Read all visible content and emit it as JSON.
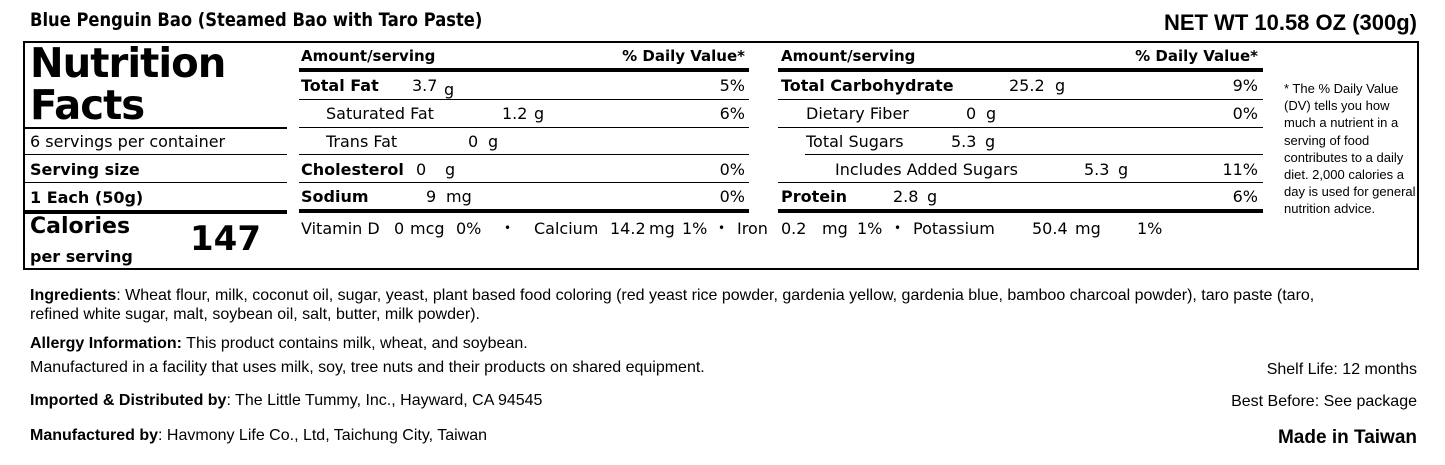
{
  "header": {
    "product_title": "Blue Penguin Bao (Steamed Bao with Taro Paste)",
    "net_weight": "NET WT 10.58 OZ (300g)"
  },
  "nutrition": {
    "title_line1": "Nutrition",
    "title_line2": "Facts",
    "servings_per_container": "6 servings per container",
    "serving_size_label": "Serving size",
    "serving_size_value": "1 Each (50g)",
    "calories_label": "Calories",
    "per_serving_label": "per serving",
    "calories_value": "147",
    "left_table": {
      "amount_header": "Amount/serving",
      "dv_header": "% Daily Value*",
      "rows": [
        {
          "name": "Total Fat",
          "amount": "3.7",
          "unit": "g",
          "dv": "5%"
        },
        {
          "name": "Saturated Fat",
          "amount": "1.2",
          "unit": "g",
          "dv": "6%"
        },
        {
          "name": "Trans Fat",
          "amount": "0",
          "unit": "g",
          "dv": ""
        },
        {
          "name": "Cholesterol",
          "amount": "0",
          "unit": "g",
          "dv": "0%"
        },
        {
          "name": "Sodium",
          "amount": "9",
          "unit": "mg",
          "dv": "0%"
        }
      ]
    },
    "right_table": {
      "amount_header": "Amount/serving",
      "dv_header": "% Daily Value*",
      "rows": [
        {
          "name": "Total Carbohydrate",
          "amount": "25.2",
          "unit": "g",
          "dv": "9%"
        },
        {
          "name": "Dietary Fiber",
          "amount": "0",
          "unit": "g",
          "dv": "0%"
        },
        {
          "name": "Total Sugars",
          "amount": "5.3",
          "unit": "g",
          "dv": ""
        },
        {
          "name": "Includes Added Sugars",
          "amount": "5.3",
          "unit": "g",
          "dv": "11%"
        },
        {
          "name": "Protein",
          "amount": "2.8",
          "unit": "g",
          "dv": "6%"
        }
      ]
    },
    "vitamins": {
      "vitamin_d": {
        "name": "Vitamin D",
        "amount": "0",
        "unit": "mcg",
        "dv": "0%"
      },
      "calcium": {
        "name": "Calcium",
        "amount": "14.2",
        "unit": "mg",
        "dv": "1%"
      },
      "iron": {
        "name": "Iron",
        "amount": "0.2",
        "unit": "mg",
        "dv": "1%"
      },
      "potassium": {
        "name": "Potassium",
        "amount": "50.4",
        "unit": "mg",
        "dv": "1%"
      },
      "separator": "•"
    },
    "footnote": "* The % Daily Value (DV) tells you how much a nutrient in a serving of food contributes to a daily diet. 2,000 calories a day is used for general nutrition advice."
  },
  "info": {
    "ingredients_label": "Ingredients",
    "ingredients_text": ": Wheat flour, milk, coconut oil, sugar, yeast, plant based food coloring (red yeast rice powder, gardenia yellow, gardenia blue, bamboo charcoal powder), taro paste (taro,",
    "ingredients_text_line2": "refined white sugar, malt, soybean oil, salt, butter, milk powder).",
    "allergy_label": "Allergy Information:",
    "allergy_text": " This product contains milk, wheat, and soybean.",
    "facility_text": "Manufactured in a facility that uses milk, soy, tree nuts and their products on shared equipment.",
    "imported_label": "Imported & Distributed by",
    "imported_text": ": The Little Tummy, Inc., Hayward, CA 94545",
    "manufactured_label": "Manufactured by",
    "manufactured_text": ": Havmony Life Co., Ltd, Taichung City, Taiwan",
    "shelf_life": "Shelf Life: 12 months",
    "best_before": "Best Before: See package",
    "made_in": "Made in Taiwan"
  }
}
